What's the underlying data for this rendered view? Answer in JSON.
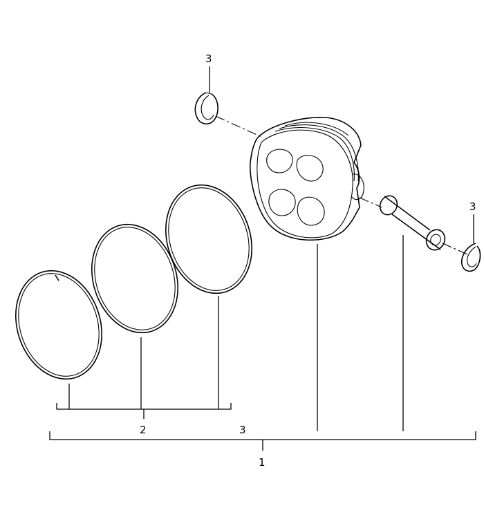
{
  "diagram": {
    "callouts": {
      "circlip_top": "3",
      "circlip_right": "3",
      "piston_pin_group": "3",
      "piston_rings": "2",
      "piston_assembly": "1"
    }
  }
}
